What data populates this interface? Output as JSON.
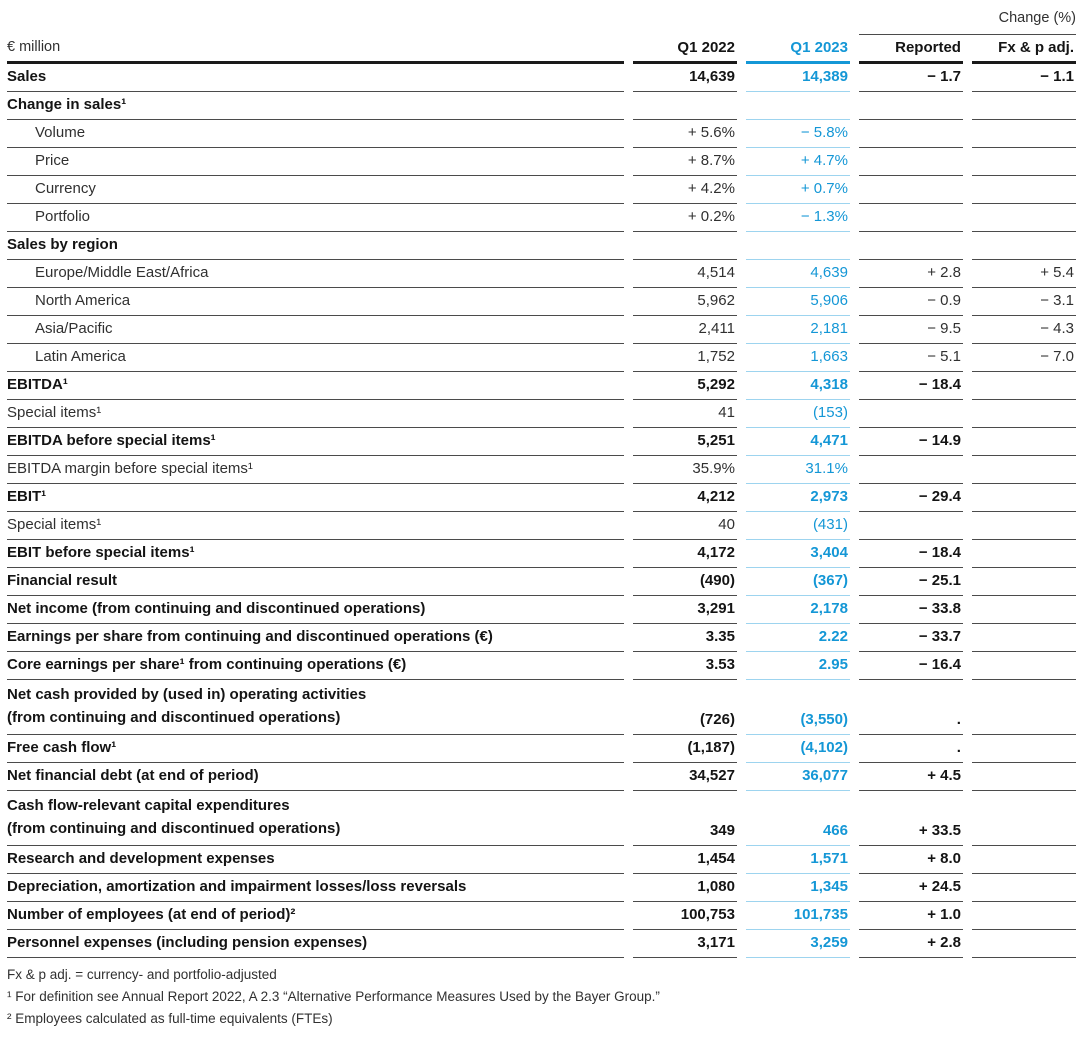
{
  "colors": {
    "accent_blue": "#1497d6",
    "light_blue_rule": "#9dd4ef",
    "dark_rule": "#4b4b4b",
    "heavy_rule": "#1a1a1a",
    "text": "#303030"
  },
  "header": {
    "change_group_label": "Change (%)",
    "unit_label": "€ million",
    "columns": [
      "Q1 2022",
      "Q1 2023",
      "Reported",
      "Fx & p adj."
    ]
  },
  "table": {
    "rows": [
      {
        "label": "Sales",
        "bold": true,
        "indent": false,
        "q1_2022": "14,639",
        "q1_2023": "14,389",
        "reported": "− 1.7",
        "fx_adj": "− 1.1"
      },
      {
        "label": "Change in sales¹",
        "bold": true,
        "indent": false,
        "q1_2022": "",
        "q1_2023": "",
        "reported": "",
        "fx_adj": ""
      },
      {
        "label": "Volume",
        "bold": false,
        "indent": true,
        "q1_2022": "+ 5.6%",
        "q1_2023": "− 5.8%",
        "reported": "",
        "fx_adj": ""
      },
      {
        "label": "Price",
        "bold": false,
        "indent": true,
        "q1_2022": "+ 8.7%",
        "q1_2023": "+ 4.7%",
        "reported": "",
        "fx_adj": ""
      },
      {
        "label": "Currency",
        "bold": false,
        "indent": true,
        "q1_2022": "+ 4.2%",
        "q1_2023": "+ 0.7%",
        "reported": "",
        "fx_adj": ""
      },
      {
        "label": "Portfolio",
        "bold": false,
        "indent": true,
        "q1_2022": "+ 0.2%",
        "q1_2023": "− 1.3%",
        "reported": "",
        "fx_adj": ""
      },
      {
        "label": "Sales by region",
        "bold": true,
        "indent": false,
        "q1_2022": "",
        "q1_2023": "",
        "reported": "",
        "fx_adj": ""
      },
      {
        "label": "Europe/Middle East/Africa",
        "bold": false,
        "indent": true,
        "q1_2022": "4,514",
        "q1_2023": "4,639",
        "reported": "+ 2.8",
        "fx_adj": "+ 5.4"
      },
      {
        "label": "North America",
        "bold": false,
        "indent": true,
        "q1_2022": "5,962",
        "q1_2023": "5,906",
        "reported": "− 0.9",
        "fx_adj": "− 3.1"
      },
      {
        "label": "Asia/Pacific",
        "bold": false,
        "indent": true,
        "q1_2022": "2,411",
        "q1_2023": "2,181",
        "reported": "− 9.5",
        "fx_adj": "− 4.3"
      },
      {
        "label": "Latin America",
        "bold": false,
        "indent": true,
        "q1_2022": "1,752",
        "q1_2023": "1,663",
        "reported": "− 5.1",
        "fx_adj": "− 7.0"
      },
      {
        "label": "EBITDA¹",
        "bold": true,
        "indent": false,
        "q1_2022": "5,292",
        "q1_2023": "4,318",
        "reported": "− 18.4",
        "fx_adj": ""
      },
      {
        "label": "Special items¹",
        "bold": false,
        "indent": false,
        "q1_2022": "41",
        "q1_2023": "(153)",
        "reported": "",
        "fx_adj": ""
      },
      {
        "label": "EBITDA before special items¹",
        "bold": true,
        "indent": false,
        "q1_2022": "5,251",
        "q1_2023": "4,471",
        "reported": "− 14.9",
        "fx_adj": ""
      },
      {
        "label": "EBITDA margin before special items¹",
        "bold": false,
        "indent": false,
        "q1_2022": "35.9%",
        "q1_2023": "31.1%",
        "reported": "",
        "fx_adj": ""
      },
      {
        "label": "EBIT¹",
        "bold": true,
        "indent": false,
        "q1_2022": "4,212",
        "q1_2023": "2,973",
        "reported": "− 29.4",
        "fx_adj": ""
      },
      {
        "label": "Special items¹",
        "bold": false,
        "indent": false,
        "q1_2022": "40",
        "q1_2023": "(431)",
        "reported": "",
        "fx_adj": ""
      },
      {
        "label": "EBIT before special items¹",
        "bold": true,
        "indent": false,
        "q1_2022": "4,172",
        "q1_2023": "3,404",
        "reported": "− 18.4",
        "fx_adj": ""
      },
      {
        "label": "Financial result",
        "bold": true,
        "indent": false,
        "q1_2022": "(490)",
        "q1_2023": "(367)",
        "reported": "− 25.1",
        "fx_adj": ""
      },
      {
        "label": "Net income (from continuing and discontinued operations)",
        "bold": true,
        "indent": false,
        "q1_2022": "3,291",
        "q1_2023": "2,178",
        "reported": "− 33.8",
        "fx_adj": ""
      },
      {
        "label": "Earnings per share from continuing and discontinued operations (€)",
        "bold": true,
        "indent": false,
        "q1_2022": "3.35",
        "q1_2023": "2.22",
        "reported": "− 33.7",
        "fx_adj": ""
      },
      {
        "label": "Core earnings per share¹ from continuing operations (€)",
        "bold": true,
        "indent": false,
        "q1_2022": "3.53",
        "q1_2023": "2.95",
        "reported": "− 16.4",
        "fx_adj": ""
      },
      {
        "label": "Net cash provided by (used in) operating activities\n(from continuing and discontinued operations)",
        "bold": true,
        "indent": false,
        "q1_2022": "(726)",
        "q1_2023": "(3,550)",
        "reported": ".",
        "fx_adj": ""
      },
      {
        "label": "Free cash flow¹",
        "bold": true,
        "indent": false,
        "q1_2022": "(1,187)",
        "q1_2023": "(4,102)",
        "reported": ".",
        "fx_adj": ""
      },
      {
        "label": "Net financial debt (at end of period)",
        "bold": true,
        "indent": false,
        "q1_2022": "34,527",
        "q1_2023": "36,077",
        "reported": "+ 4.5",
        "fx_adj": ""
      },
      {
        "label": "Cash flow-relevant capital expenditures\n(from continuing and discontinued operations)",
        "bold": true,
        "indent": false,
        "q1_2022": "349",
        "q1_2023": "466",
        "reported": "+ 33.5",
        "fx_adj": ""
      },
      {
        "label": "Research and development expenses",
        "bold": true,
        "indent": false,
        "q1_2022": "1,454",
        "q1_2023": "1,571",
        "reported": "+ 8.0",
        "fx_adj": ""
      },
      {
        "label": "Depreciation, amortization and impairment losses/loss reversals",
        "bold": true,
        "indent": false,
        "q1_2022": "1,080",
        "q1_2023": "1,345",
        "reported": "+ 24.5",
        "fx_adj": ""
      },
      {
        "label": "Number of employees (at end of period)²",
        "bold": true,
        "indent": false,
        "q1_2022": "100,753",
        "q1_2023": "101,735",
        "reported": "+ 1.0",
        "fx_adj": ""
      },
      {
        "label": "Personnel expenses (including pension expenses)",
        "bold": true,
        "indent": false,
        "q1_2022": "3,171",
        "q1_2023": "3,259",
        "reported": "+ 2.8",
        "fx_adj": ""
      }
    ]
  },
  "footnotes": [
    "Fx & p adj. = currency- and portfolio-adjusted",
    "¹ For definition see Annual Report 2022, A 2.3 “Alternative Performance Measures Used by the Bayer Group.”",
    "² Employees calculated as full-time equivalents (FTEs)"
  ]
}
